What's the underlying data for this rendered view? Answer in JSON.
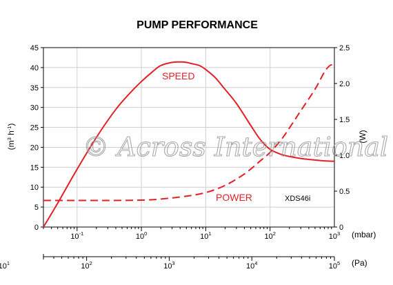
{
  "chart_data": {
    "type": "line",
    "title": "PUMP PERFORMANCE",
    "ylabel_left": "(m3 h-1)",
    "ylabel_right": "(W)",
    "xlabel_mbar": "(mbar)",
    "xlabel_pa": "(Pa)",
    "x_scale": "log",
    "xlim": [
      0.03,
      1000
    ],
    "ylim_left": [
      0,
      45
    ],
    "ylim_right": [
      0,
      2.5
    ],
    "grid": true,
    "left_ticks": [
      "0",
      "5",
      "10",
      "15",
      "20",
      "25",
      "30",
      "35",
      "40",
      "45"
    ],
    "right_ticks": [
      "0",
      "0.5",
      "1.0",
      "1.5",
      "2.0",
      "2.5"
    ],
    "mbar_ticks": [
      {
        "value": 0.1,
        "base": "10",
        "exp": "-1"
      },
      {
        "value": 1,
        "base": "10",
        "exp": "0"
      },
      {
        "value": 10,
        "base": "10",
        "exp": "1"
      },
      {
        "value": 100,
        "base": "10",
        "exp": "2"
      },
      {
        "value": 1000,
        "base": "10",
        "exp": "3"
      }
    ],
    "pa_ticks": [
      {
        "value": 10,
        "base": "10",
        "exp": "1"
      },
      {
        "value": 100,
        "base": "10",
        "exp": "2"
      },
      {
        "value": 1000,
        "base": "10",
        "exp": "3"
      },
      {
        "value": 10000,
        "base": "10",
        "exp": "4"
      },
      {
        "value": 100000,
        "base": "10",
        "exp": "5"
      }
    ],
    "series": [
      {
        "name": "SPEED",
        "axis": "left",
        "style": "solid",
        "x": [
          0.03,
          0.05,
          0.1,
          0.2,
          0.4,
          0.7,
          1,
          1.5,
          2,
          3,
          4,
          5,
          6,
          8,
          10,
          14,
          20,
          30,
          50,
          70,
          100,
          150,
          200,
          300,
          500,
          700,
          1000
        ],
        "y": [
          0,
          6,
          14.5,
          22.5,
          29.5,
          34,
          36.5,
          39,
          40.5,
          41.3,
          41.4,
          41.3,
          41,
          40.5,
          39.5,
          37.5,
          34.5,
          31,
          25.5,
          22,
          19.5,
          18.2,
          17.7,
          17.2,
          16.8,
          16.6,
          16.5
        ]
      },
      {
        "name": "POWER",
        "axis": "right",
        "style": "dashed",
        "x": [
          0.03,
          0.1,
          0.3,
          1,
          2,
          5,
          10,
          20,
          40,
          70,
          100,
          150,
          200,
          300,
          500,
          700,
          850,
          1000
        ],
        "y": [
          0.37,
          0.37,
          0.37,
          0.375,
          0.39,
          0.43,
          0.48,
          0.58,
          0.74,
          0.92,
          1.04,
          1.22,
          1.38,
          1.62,
          1.92,
          2.16,
          2.25,
          2.26
        ]
      }
    ],
    "series_color": "#e31e24",
    "annotations": {
      "model": "XDS46i"
    },
    "watermark": "© Across International"
  }
}
